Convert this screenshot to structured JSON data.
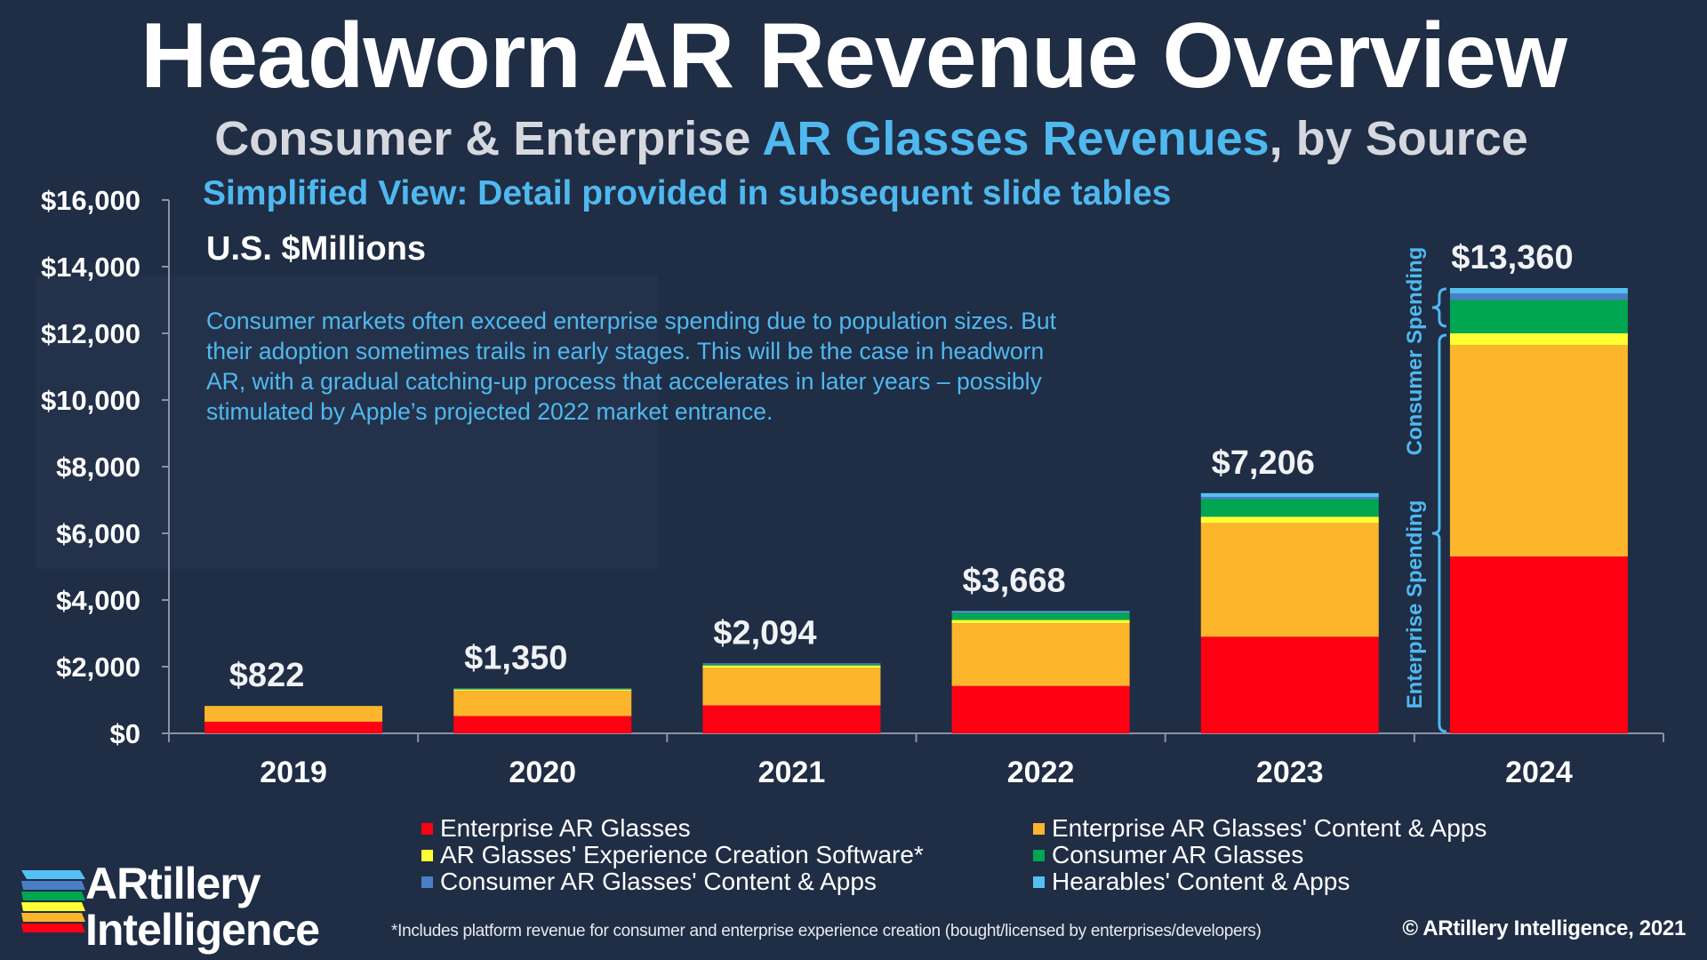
{
  "title": "Headworn AR Revenue Overview",
  "subtitle": {
    "part1": "Consumer & Enterprise ",
    "highlight": "AR Glasses Revenues",
    "part2": ", by Source"
  },
  "simplified_view": "Simplified View: Detail provided in subsequent slide tables",
  "units": "U.S. $Millions",
  "note": "Consumer markets often exceed enterprise spending due to population sizes. But their adoption sometimes trails in early stages. This will be the case in headworn AR, with a gradual catching-up process that accelerates in later years – possibly stimulated by Apple’s projected 2022 market entrance.",
  "watermark": "ARtillery Intelligence",
  "footnote": "*Includes platform revenue for consumer and enterprise experience creation (bought/licensed by enterprises/developers)",
  "copyright": "© ARtillery Intelligence, 2021",
  "logo": {
    "line1": "ARtillery",
    "line2": "Intelligence"
  },
  "chart_data": {
    "type": "bar",
    "stacked": true,
    "categories": [
      "2019",
      "2020",
      "2021",
      "2022",
      "2023",
      "2024"
    ],
    "totals_labels": [
      "$822",
      "$1,350",
      "$2,094",
      "$3,668",
      "$7,206",
      "$13,360"
    ],
    "series": [
      {
        "name": "Enterprise AR Glasses",
        "color": "#ff0013",
        "values": [
          348,
          518,
          839,
          1420,
          2897,
          5306
        ]
      },
      {
        "name": "Enterprise AR Glasses' Content & Apps",
        "color": "#fdb52b",
        "values": [
          466,
          759,
          1125,
          1884,
          3413,
          6339
        ]
      },
      {
        "name": "AR Glasses' Experience Creation Software*",
        "color": "#ffff33",
        "values": [
          6,
          40,
          72,
          98,
          191,
          355
        ]
      },
      {
        "name": "Consumer AR Glasses",
        "color": "#00a651",
        "values": [
          1,
          18,
          25,
          205,
          526,
          1002
        ]
      },
      {
        "name": "Consumer AR Glasses' Content & Apps",
        "color": "#4a7fc8",
        "values": [
          0,
          7,
          13,
          30,
          67,
          191
        ]
      },
      {
        "name": "Hearables' Content & Apps",
        "color": "#55c1f2",
        "values": [
          1,
          8,
          20,
          31,
          112,
          167
        ]
      }
    ],
    "ylim": [
      0,
      16000
    ],
    "yticks": [
      "$0",
      "$2,000",
      "$4,000",
      "$6,000",
      "$8,000",
      "$10,000",
      "$12,000",
      "$14,000",
      "$16,000"
    ],
    "ytick_values": [
      0,
      2000,
      4000,
      6000,
      8000,
      10000,
      12000,
      14000,
      16000
    ],
    "grid": false,
    "legend": "bottom",
    "annotations": {
      "consumer": "Consumer Spending",
      "enterprise": "Enterprise Spending",
      "color": "#4fb8ef"
    }
  }
}
